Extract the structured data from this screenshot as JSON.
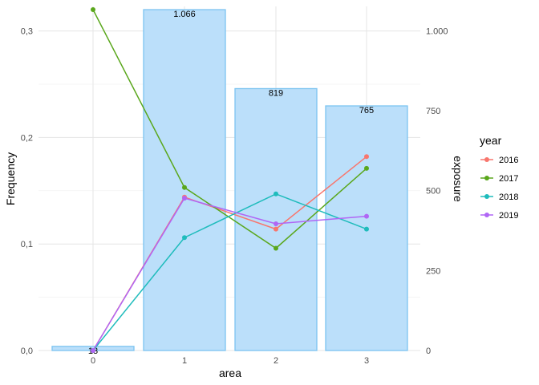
{
  "chart_data": {
    "type": "bar+line",
    "xlabel": "area",
    "ylabel_left": "Frequency",
    "ylabel_right": "exposure",
    "categories": [
      "0",
      "1",
      "2",
      "3"
    ],
    "left_axis": {
      "ylim": [
        0,
        0.32
      ],
      "ticks": [
        0,
        0.1,
        0.2,
        0.3
      ],
      "tick_labels": [
        "0,0",
        "0,1",
        "0,2",
        "0,3"
      ]
    },
    "right_axis": {
      "ylim": [
        0,
        1066
      ],
      "ticks": [
        0,
        250,
        500,
        750,
        1000
      ],
      "tick_labels": [
        "0",
        "250",
        "500",
        "750",
        "1.000"
      ]
    },
    "bars": {
      "name": "exposure",
      "values": [
        13,
        1066,
        819,
        765
      ],
      "labels": [
        "13",
        "1.066",
        "819",
        "765"
      ],
      "color": "#bbdffa",
      "stroke": "#7cc4f0"
    },
    "legend": {
      "title": "year",
      "placement": "right"
    },
    "series": [
      {
        "name": "2016",
        "color": "#f8766d",
        "values": [
          0.0,
          0.144,
          0.114,
          0.182
        ]
      },
      {
        "name": "2017",
        "color": "#5aa71c",
        "values": [
          0.32,
          0.153,
          0.096,
          0.171
        ]
      },
      {
        "name": "2018",
        "color": "#1fbcbc",
        "values": [
          0.0,
          0.106,
          0.147,
          0.114
        ]
      },
      {
        "name": "2019",
        "color": "#b066f5",
        "values": [
          0.0,
          0.143,
          0.119,
          0.126
        ]
      }
    ],
    "grid": true
  }
}
